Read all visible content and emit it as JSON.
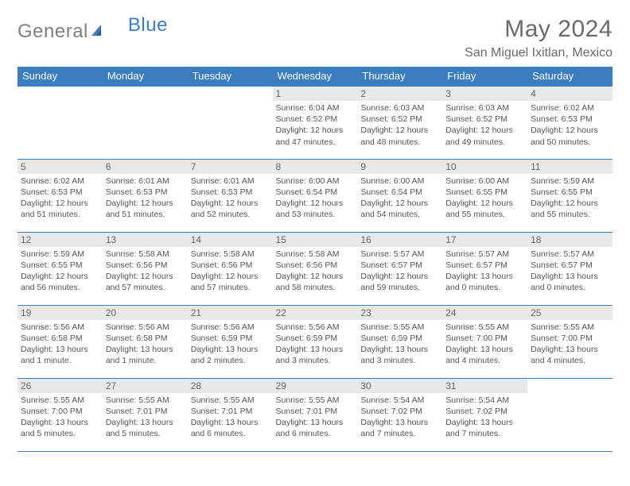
{
  "logo": {
    "general": "General",
    "blue": "Blue"
  },
  "title": "May 2024",
  "location": "San Miguel Ixitlan, Mexico",
  "colors": {
    "header_bg": "#3a7ec1",
    "header_text": "#ffffff",
    "daynum_bg": "#e8e8e8",
    "text_gray": "#6a6a6a",
    "info_text": "#555555",
    "border": "#3a7ec1",
    "logo_gray": "#808080",
    "logo_blue": "#3a7ec1",
    "page_bg": "#ffffff"
  },
  "typography": {
    "title_size_pt": 22,
    "location_size_pt": 12,
    "weekday_size_pt": 10,
    "daynum_size_pt": 9,
    "info_size_pt": 8
  },
  "weekdays": [
    "Sunday",
    "Monday",
    "Tuesday",
    "Wednesday",
    "Thursday",
    "Friday",
    "Saturday"
  ],
  "weeks": [
    [
      {
        "day": null
      },
      {
        "day": null
      },
      {
        "day": null
      },
      {
        "day": 1,
        "sunrise": "6:04 AM",
        "sunset": "6:52 PM",
        "daylight": "12 hours and 47 minutes."
      },
      {
        "day": 2,
        "sunrise": "6:03 AM",
        "sunset": "6:52 PM",
        "daylight": "12 hours and 48 minutes."
      },
      {
        "day": 3,
        "sunrise": "6:03 AM",
        "sunset": "6:52 PM",
        "daylight": "12 hours and 49 minutes."
      },
      {
        "day": 4,
        "sunrise": "6:02 AM",
        "sunset": "6:53 PM",
        "daylight": "12 hours and 50 minutes."
      }
    ],
    [
      {
        "day": 5,
        "sunrise": "6:02 AM",
        "sunset": "6:53 PM",
        "daylight": "12 hours and 51 minutes."
      },
      {
        "day": 6,
        "sunrise": "6:01 AM",
        "sunset": "6:53 PM",
        "daylight": "12 hours and 51 minutes."
      },
      {
        "day": 7,
        "sunrise": "6:01 AM",
        "sunset": "6:53 PM",
        "daylight": "12 hours and 52 minutes."
      },
      {
        "day": 8,
        "sunrise": "6:00 AM",
        "sunset": "6:54 PM",
        "daylight": "12 hours and 53 minutes."
      },
      {
        "day": 9,
        "sunrise": "6:00 AM",
        "sunset": "6:54 PM",
        "daylight": "12 hours and 54 minutes."
      },
      {
        "day": 10,
        "sunrise": "6:00 AM",
        "sunset": "6:55 PM",
        "daylight": "12 hours and 55 minutes."
      },
      {
        "day": 11,
        "sunrise": "5:59 AM",
        "sunset": "6:55 PM",
        "daylight": "12 hours and 55 minutes."
      }
    ],
    [
      {
        "day": 12,
        "sunrise": "5:59 AM",
        "sunset": "6:55 PM",
        "daylight": "12 hours and 56 minutes."
      },
      {
        "day": 13,
        "sunrise": "5:58 AM",
        "sunset": "6:56 PM",
        "daylight": "12 hours and 57 minutes."
      },
      {
        "day": 14,
        "sunrise": "5:58 AM",
        "sunset": "6:56 PM",
        "daylight": "12 hours and 57 minutes."
      },
      {
        "day": 15,
        "sunrise": "5:58 AM",
        "sunset": "6:56 PM",
        "daylight": "12 hours and 58 minutes."
      },
      {
        "day": 16,
        "sunrise": "5:57 AM",
        "sunset": "6:57 PM",
        "daylight": "12 hours and 59 minutes."
      },
      {
        "day": 17,
        "sunrise": "5:57 AM",
        "sunset": "6:57 PM",
        "daylight": "13 hours and 0 minutes."
      },
      {
        "day": 18,
        "sunrise": "5:57 AM",
        "sunset": "6:57 PM",
        "daylight": "13 hours and 0 minutes."
      }
    ],
    [
      {
        "day": 19,
        "sunrise": "5:56 AM",
        "sunset": "6:58 PM",
        "daylight": "13 hours and 1 minute."
      },
      {
        "day": 20,
        "sunrise": "5:56 AM",
        "sunset": "6:58 PM",
        "daylight": "13 hours and 1 minute."
      },
      {
        "day": 21,
        "sunrise": "5:56 AM",
        "sunset": "6:59 PM",
        "daylight": "13 hours and 2 minutes."
      },
      {
        "day": 22,
        "sunrise": "5:56 AM",
        "sunset": "6:59 PM",
        "daylight": "13 hours and 3 minutes."
      },
      {
        "day": 23,
        "sunrise": "5:55 AM",
        "sunset": "6:59 PM",
        "daylight": "13 hours and 3 minutes."
      },
      {
        "day": 24,
        "sunrise": "5:55 AM",
        "sunset": "7:00 PM",
        "daylight": "13 hours and 4 minutes."
      },
      {
        "day": 25,
        "sunrise": "5:55 AM",
        "sunset": "7:00 PM",
        "daylight": "13 hours and 4 minutes."
      }
    ],
    [
      {
        "day": 26,
        "sunrise": "5:55 AM",
        "sunset": "7:00 PM",
        "daylight": "13 hours and 5 minutes."
      },
      {
        "day": 27,
        "sunrise": "5:55 AM",
        "sunset": "7:01 PM",
        "daylight": "13 hours and 5 minutes."
      },
      {
        "day": 28,
        "sunrise": "5:55 AM",
        "sunset": "7:01 PM",
        "daylight": "13 hours and 6 minutes."
      },
      {
        "day": 29,
        "sunrise": "5:55 AM",
        "sunset": "7:01 PM",
        "daylight": "13 hours and 6 minutes."
      },
      {
        "day": 30,
        "sunrise": "5:54 AM",
        "sunset": "7:02 PM",
        "daylight": "13 hours and 7 minutes."
      },
      {
        "day": 31,
        "sunrise": "5:54 AM",
        "sunset": "7:02 PM",
        "daylight": "13 hours and 7 minutes."
      },
      {
        "day": null
      }
    ]
  ],
  "labels": {
    "sunrise": "Sunrise:",
    "sunset": "Sunset:",
    "daylight": "Daylight:"
  }
}
